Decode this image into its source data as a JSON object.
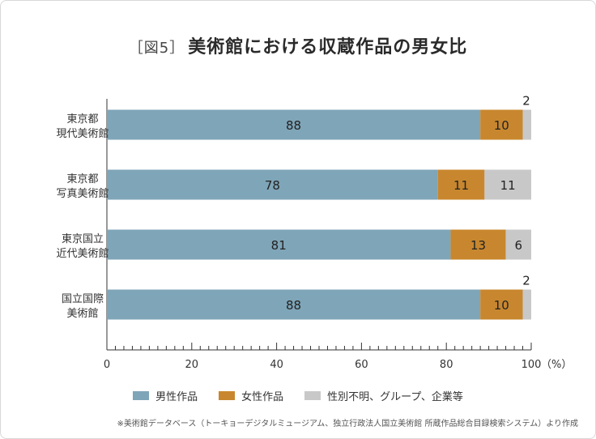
{
  "title": {
    "fig_label": "［図5］",
    "text": "美術館における収蔵作品の男女比"
  },
  "colors": {
    "male": "#7fa5b8",
    "female": "#c8872e",
    "other": "#c8c8c8"
  },
  "chart_data": {
    "type": "bar",
    "orientation": "horizontal",
    "stacked": true,
    "categories": [
      [
        "東京都",
        "現代美術館"
      ],
      [
        "東京都",
        "写真美術館"
      ],
      [
        "東京国立",
        "近代美術館"
      ],
      [
        "国立国際",
        "美術館"
      ]
    ],
    "series": [
      {
        "name": "男性作品",
        "values": [
          88,
          78,
          81,
          88
        ]
      },
      {
        "name": "女性作品",
        "values": [
          10,
          11,
          13,
          10
        ]
      },
      {
        "name": "性別不明、グループ、企業等",
        "values": [
          2,
          11,
          6,
          2
        ]
      }
    ],
    "xlim": [
      0,
      100
    ],
    "xticks": [
      "0",
      "20",
      "40",
      "60",
      "80",
      "100"
    ],
    "x_unit": "（%）",
    "legend_position": "bottom",
    "grid": false
  },
  "source": "※美術館データベース（トーキョーデジタルミュージアム、独立行政法人国立美術館 所蔵作品総合目録検索システム）より作成"
}
